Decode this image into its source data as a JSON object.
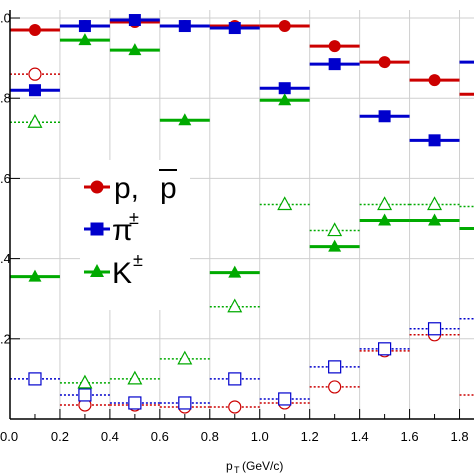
{
  "chart_data": {
    "type": "scatter",
    "xlabel": "p",
    "xlabel_sub": "T",
    "xlabel_unit": "(GeV/c)",
    "xlim": [
      0.0,
      1.9
    ],
    "ylim": [
      0.0,
      1.02
    ],
    "xticks": [
      "0.0",
      "0.2",
      "0.4",
      "0.6",
      "0.8",
      "1.0",
      "1.2",
      "1.4",
      "1.6",
      "1.8"
    ],
    "yticks": [
      ".0",
      ".8",
      ".6",
      ".4",
      ".2"
    ],
    "ytick_values": [
      1.0,
      0.8,
      0.6,
      0.4,
      0.2
    ],
    "grid": true,
    "legend": [
      {
        "label": "p, ",
        "label_bar": "p",
        "marker": "circle",
        "color": "#cc0000"
      },
      {
        "label": "π",
        "sup": "±",
        "marker": "square",
        "color": "#0000cc"
      },
      {
        "label": "K",
        "sup": "±",
        "marker": "triangle",
        "color": "#00aa00"
      }
    ],
    "x": [
      0.1,
      0.3,
      0.5,
      0.7,
      0.9,
      1.1,
      1.3,
      1.5,
      1.7,
      1.9
    ],
    "series": [
      {
        "marker": "circle",
        "filled": true,
        "style": "solid",
        "color": "#cc0000",
        "values": [
          0.97,
          0.98,
          0.99,
          0.98,
          0.98,
          0.98,
          0.93,
          0.89,
          0.845,
          0.81
        ]
      },
      {
        "marker": "square",
        "filled": true,
        "style": "solid",
        "color": "#0000cc",
        "values": [
          0.82,
          0.98,
          0.995,
          0.98,
          0.975,
          0.825,
          0.885,
          0.755,
          0.695,
          0.89
        ]
      },
      {
        "marker": "triangle",
        "filled": true,
        "style": "solid",
        "color": "#00aa00",
        "values": [
          0.355,
          0.945,
          0.92,
          0.745,
          0.365,
          0.795,
          0.43,
          0.495,
          0.495,
          0.475
        ]
      },
      {
        "marker": "circle",
        "filled": false,
        "style": "dotted",
        "color": "#cc0000",
        "values": [
          0.86,
          0.035,
          0.035,
          0.03,
          0.03,
          0.04,
          0.08,
          0.17,
          0.21,
          0.06
        ]
      },
      {
        "marker": "square",
        "filled": false,
        "style": "dotted",
        "color": "#0000cc",
        "values": [
          0.1,
          0.06,
          0.04,
          0.04,
          0.1,
          0.05,
          0.13,
          0.175,
          0.225,
          0.25
        ]
      },
      {
        "marker": "triangle",
        "filled": false,
        "style": "dotted",
        "color": "#00aa00",
        "values": [
          0.74,
          0.09,
          0.1,
          0.15,
          0.28,
          0.535,
          0.47,
          0.535,
          0.535,
          0.53
        ]
      }
    ]
  }
}
